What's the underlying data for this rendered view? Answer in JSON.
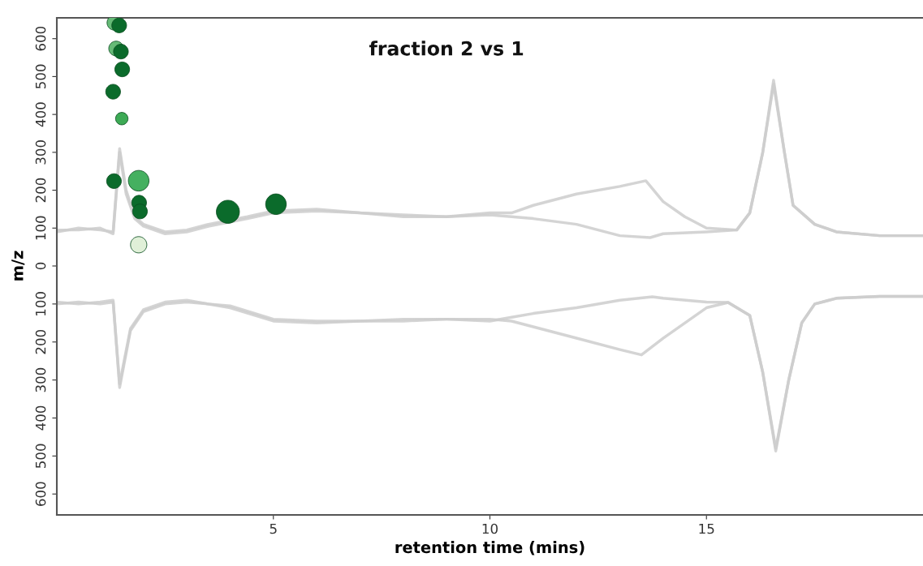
{
  "chart_data": [
    {
      "type": "line",
      "title": "fraction 2 vs 1",
      "ylabel": "m/z",
      "xlim": [
        0,
        20
      ],
      "ylim": [
        0,
        655
      ],
      "yticks": [
        100,
        200,
        300,
        400,
        500,
        600
      ],
      "tick_labels": "y",
      "grid": false,
      "series": [
        {
          "color": "#cccccc",
          "x": [
            0,
            0.5,
            1.0,
            1.3,
            1.45,
            1.6,
            1.8,
            2.0,
            2.5,
            3,
            3.5,
            4.4,
            5,
            6,
            7,
            8,
            9,
            10,
            10.5,
            11,
            12,
            13,
            13.6,
            14,
            14.5,
            15,
            15.7,
            16,
            16.3,
            16.55,
            16.8,
            17,
            17.5,
            18,
            19,
            20
          ],
          "values": [
            90,
            100,
            95,
            90,
            310,
            200,
            130,
            110,
            90,
            95,
            110,
            130,
            145,
            150,
            140,
            135,
            130,
            140,
            140,
            160,
            190,
            210,
            225,
            170,
            130,
            100,
            95,
            140,
            300,
            490,
            300,
            160,
            110,
            90,
            80,
            80
          ]
        },
        {
          "color": "#cccccc",
          "x": [
            0,
            0.5,
            1.0,
            1.3,
            1.45,
            1.6,
            1.8,
            2.0,
            2.5,
            3,
            3.5,
            4.4,
            5,
            6,
            7,
            8,
            9,
            10,
            10.5,
            11,
            12,
            13,
            13.7,
            14,
            15,
            15.7,
            16,
            16.3,
            16.55,
            16.8,
            17,
            17.5,
            18,
            19,
            20
          ],
          "values": [
            95,
            95,
            100,
            85,
            300,
            190,
            125,
            105,
            85,
            90,
            105,
            125,
            140,
            145,
            140,
            130,
            130,
            135,
            130,
            125,
            110,
            80,
            75,
            85,
            90,
            95,
            140,
            300,
            480,
            300,
            160,
            110,
            90,
            80,
            80
          ]
        },
        {
          "type": "bubble",
          "x": [
            1.33,
            1.37,
            1.44,
            1.48,
            1.51,
            1.3,
            1.5,
            1.32,
            1.89,
            1.9,
            1.92,
            1.89,
            3.95,
            5.06
          ],
          "values": [
            642,
            574,
            635,
            566,
            519,
            460,
            389,
            224,
            225,
            167,
            144,
            56,
            143,
            163
          ],
          "sizes": [
            0.41,
            0.41,
            0.41,
            0.41,
            0.41,
            0.41,
            0.29,
            0.41,
            0.8,
            0.41,
            0.41,
            0.5,
            1,
            0.8
          ],
          "colors": [
            "#66bb77",
            "#66bb77",
            "#0b6b2b",
            "#0b6b2b",
            "#0b6b2b",
            "#0b6b2b",
            "#3daa55",
            "#0b6b2b",
            "#45b060",
            "#0b6b2b",
            "#0b6b2b",
            "#e0f0d8",
            "#0b6b2b",
            "#0b6b2b"
          ]
        }
      ]
    },
    {
      "type": "line",
      "xlabel": "retention time (mins)",
      "xlim": [
        0,
        20
      ],
      "xticks": [
        5,
        10,
        15
      ],
      "ylim": [
        655,
        0
      ],
      "yticks": [
        0,
        100,
        200,
        300,
        400,
        500,
        600
      ],
      "grid": false,
      "series": [
        {
          "color": "#cccccc",
          "x": [
            0,
            0.5,
            1.0,
            1.3,
            1.45,
            1.7,
            2.0,
            2.5,
            3,
            4,
            5,
            6,
            7,
            8,
            9,
            10,
            10.5,
            11,
            12,
            13,
            13.75,
            14,
            15,
            15.5,
            16,
            16.3,
            16.6,
            16.9,
            17.2,
            17.5,
            18,
            19,
            20
          ],
          "values": [
            95,
            100,
            95,
            90,
            320,
            170,
            120,
            100,
            95,
            105,
            140,
            145,
            145,
            140,
            140,
            145,
            135,
            125,
            110,
            90,
            81,
            85,
            95,
            96,
            130,
            280,
            487,
            300,
            150,
            100,
            85,
            80,
            80
          ]
        },
        {
          "color": "#cccccc",
          "x": [
            0,
            0.5,
            1.0,
            1.3,
            1.45,
            1.7,
            2.0,
            2.5,
            3,
            4,
            5,
            6,
            7,
            8,
            9,
            10,
            10.5,
            11,
            12,
            13,
            13.5,
            14,
            15,
            15.5,
            16,
            16.3,
            16.6,
            16.9,
            17.2,
            17.5,
            18,
            19,
            20
          ],
          "values": [
            100,
            95,
            100,
            95,
            310,
            165,
            115,
            95,
            90,
            110,
            145,
            150,
            145,
            145,
            140,
            140,
            145,
            160,
            190,
            220,
            234,
            190,
            110,
            96,
            130,
            280,
            480,
            300,
            150,
            100,
            85,
            80,
            80
          ]
        }
      ]
    }
  ]
}
